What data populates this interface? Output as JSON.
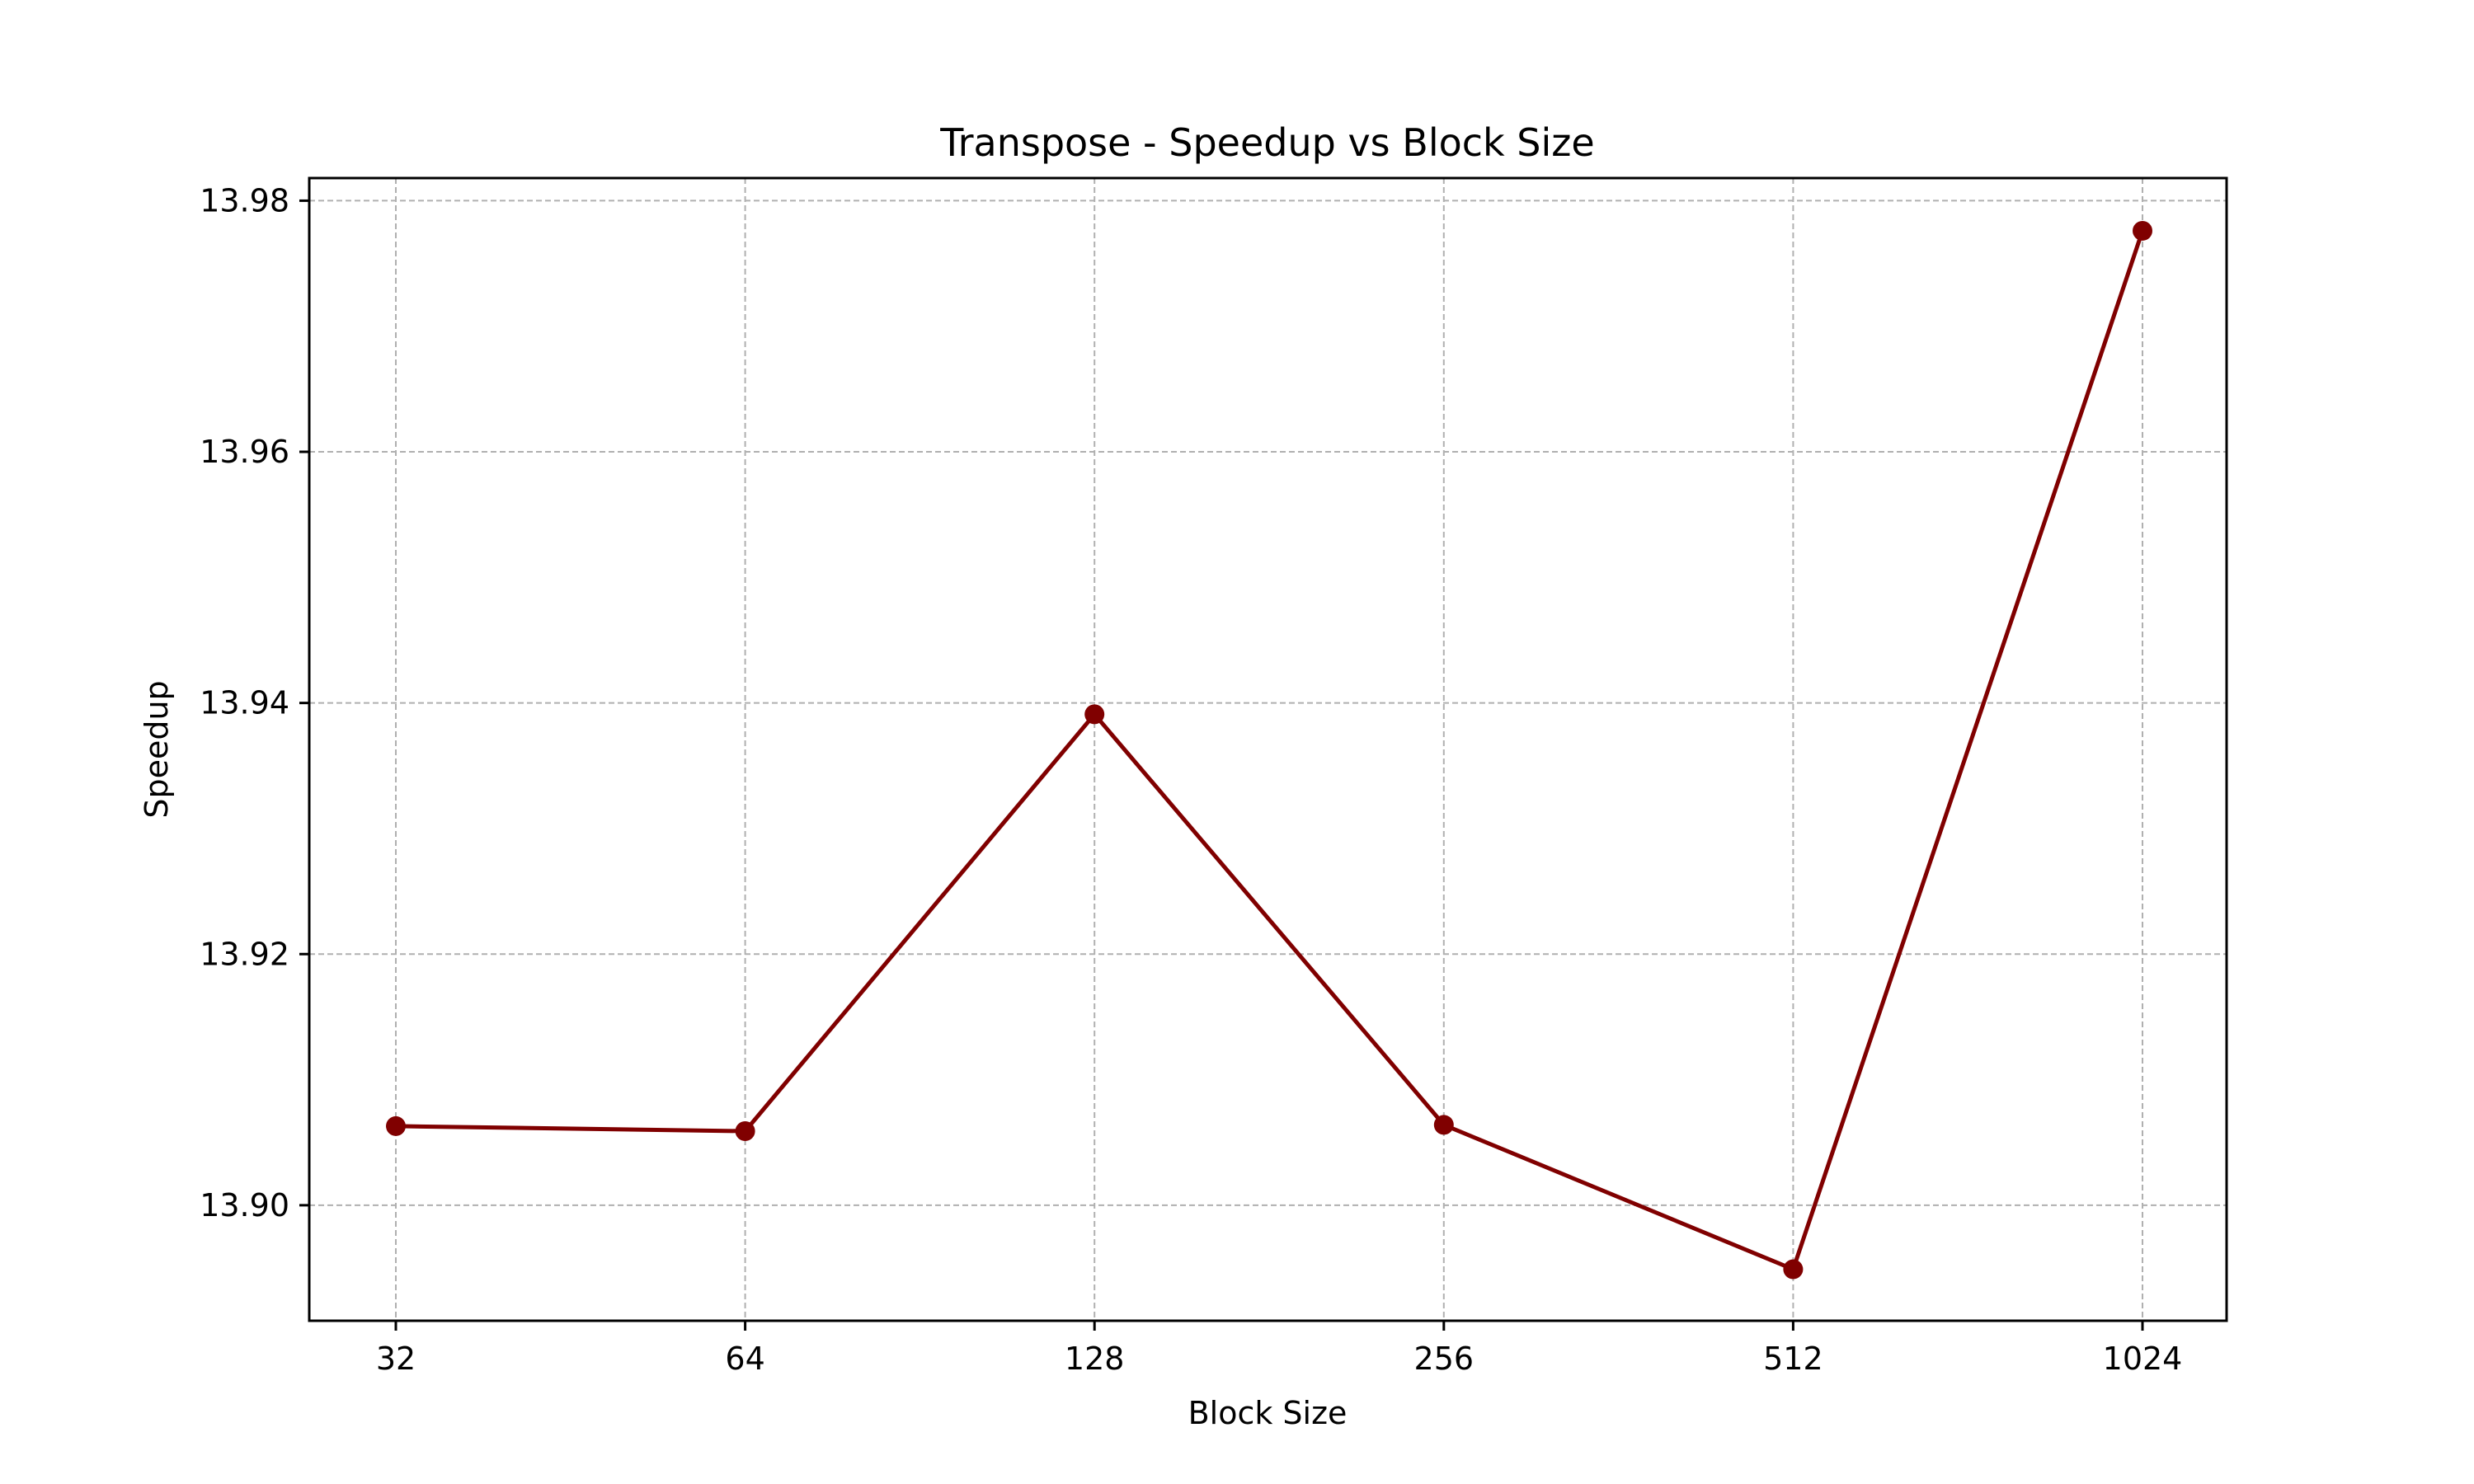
{
  "chart_data": {
    "type": "line",
    "title": "Transpose - Speedup vs Block Size",
    "xlabel": "Block Size",
    "ylabel": "Speedup",
    "categories": [
      "32",
      "64",
      "128",
      "256",
      "512",
      "1024"
    ],
    "series": [
      {
        "values": [
          13.9063,
          13.9059,
          13.9391,
          13.9064,
          13.8949,
          13.9776
        ],
        "color": "#800000",
        "marker": "circle"
      }
    ],
    "yticks": [
      "13.90",
      "13.92",
      "13.94",
      "13.96",
      "13.98"
    ],
    "ylim": [
      13.8908,
      13.9818
    ],
    "grid": true
  }
}
